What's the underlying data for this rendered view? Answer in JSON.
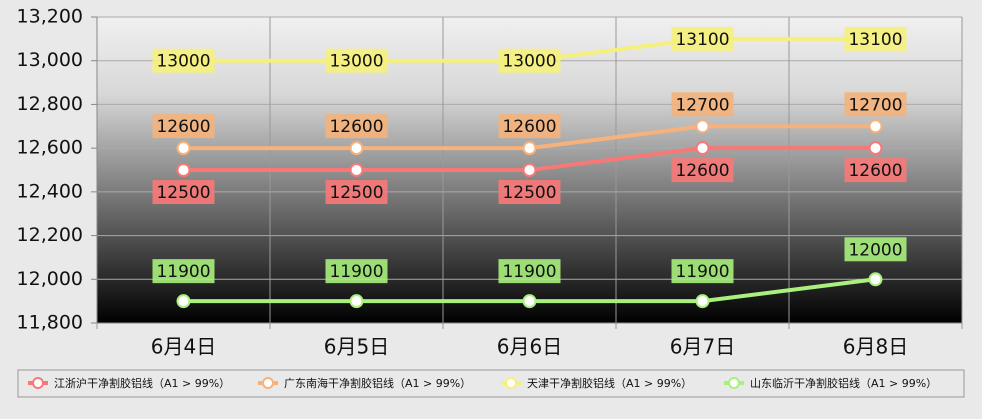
{
  "chart_data": {
    "type": "line",
    "categories": [
      "6月4日",
      "6月5日",
      "6月6日",
      "6月7日",
      "6月8日"
    ],
    "series": [
      {
        "name": "江浙沪干净割胶铝线（A1 > 99%）",
        "color": "#f87878",
        "values": [
          12500,
          12500,
          12500,
          12600,
          12600
        ]
      },
      {
        "name": "广东南海干净割胶铝线（A1 > 99%）",
        "color": "#f5b27c",
        "values": [
          12600,
          12600,
          12600,
          12700,
          12700
        ]
      },
      {
        "name": "天津干净割胶铝线（A1 > 99%）",
        "color": "#f5f07c",
        "values": [
          13000,
          13000,
          13000,
          13100,
          13100
        ]
      },
      {
        "name": "山东临沂干净割胶铝线（A1 > 99%）",
        "color": "#a9f07c",
        "values": [
          11900,
          11900,
          11900,
          11900,
          12000
        ]
      }
    ],
    "ylim": [
      11800,
      13200
    ],
    "yticks": [
      {
        "value": 11800,
        "label": "11,800"
      },
      {
        "value": 12000,
        "label": "12,000"
      },
      {
        "value": 12200,
        "label": "12,200"
      },
      {
        "value": 12400,
        "label": "12,400"
      },
      {
        "value": 12600,
        "label": "12,600"
      },
      {
        "value": 12800,
        "label": "12,800"
      },
      {
        "value": 13000,
        "label": "13,000"
      },
      {
        "value": 13200,
        "label": "13,200"
      }
    ],
    "grid": true,
    "legend": "bottom"
  }
}
